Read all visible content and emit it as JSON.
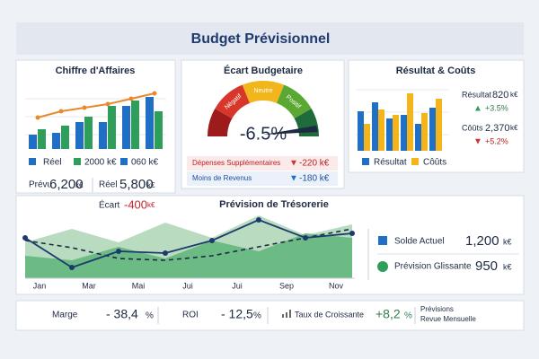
{
  "header": {
    "title": "Budget Prévisionnel"
  },
  "revenue": {
    "title": "Chiffre d'Affaires",
    "bars_blue": [
      16,
      18,
      30,
      30,
      48,
      58
    ],
    "bars_green": [
      22,
      26,
      36,
      48,
      54,
      42
    ],
    "line": [
      35,
      42,
      46,
      50,
      56,
      62
    ],
    "legend": [
      "Réel",
      "2000 k€",
      "060 k€"
    ],
    "kpis": [
      {
        "label": "Prévu",
        "value": "6,200",
        "unit": "k€"
      },
      {
        "label": "Réel",
        "value": "5,800",
        "unit": "k€"
      }
    ],
    "gap": {
      "label": "Écart",
      "value": "-400",
      "unit": "k€"
    }
  },
  "variance": {
    "title": "Écart Budgetaire",
    "zones": [
      "Négatif",
      "Neutre",
      "Positif"
    ],
    "value": -6.5,
    "value_label": "-6.5%",
    "rows": [
      {
        "label": "Dépenses Supplémentaires",
        "value": "-220 k€"
      },
      {
        "label": "Moins de Revenus",
        "value": "-180 k€"
      }
    ]
  },
  "results": {
    "title": "Résultat & Coûts",
    "bars_blue": [
      44,
      54,
      36,
      40,
      30,
      48
    ],
    "bars_yellow": [
      30,
      46,
      40,
      64,
      42,
      58
    ],
    "legend": [
      "Résultat",
      "Côûts"
    ],
    "kpis": [
      {
        "label": "Résultat",
        "value": "820",
        "unit": "k€",
        "change": "+3.5%"
      },
      {
        "label": "Côûts",
        "value": "2,370",
        "unit": "k€",
        "change": "+5.2%"
      }
    ]
  },
  "cash": {
    "title": "Prévision de Trésorerie",
    "x_labels": [
      "Jan",
      "Mar",
      "Mai",
      "Jui",
      "Jui",
      "Sep",
      "Nov"
    ],
    "area_light": [
      40,
      55,
      40,
      62,
      45,
      70,
      48,
      60
    ],
    "area_mid": [
      25,
      20,
      35,
      22,
      42,
      30,
      50,
      45
    ],
    "line": [
      45,
      12,
      30,
      28,
      42,
      65,
      45,
      50
    ],
    "dashed": [
      42,
      34,
      22,
      20,
      25,
      35,
      45,
      55
    ],
    "kpis": [
      {
        "label": "Solde Actuel",
        "value": "1,200",
        "unit": "k€"
      },
      {
        "label": "Prévision Glissante",
        "value": "950",
        "unit": "k€"
      }
    ]
  },
  "footer": {
    "items": [
      {
        "label": "Marge",
        "value": "- 38,4",
        "unit": "%"
      },
      {
        "label": "ROI",
        "value": "- 12,5",
        "unit": "%"
      },
      {
        "label": "Taux de Croissante",
        "value": "+8,2",
        "unit": "%"
      }
    ],
    "note": [
      "Prévisions",
      "Revue Mensuelle"
    ]
  }
}
